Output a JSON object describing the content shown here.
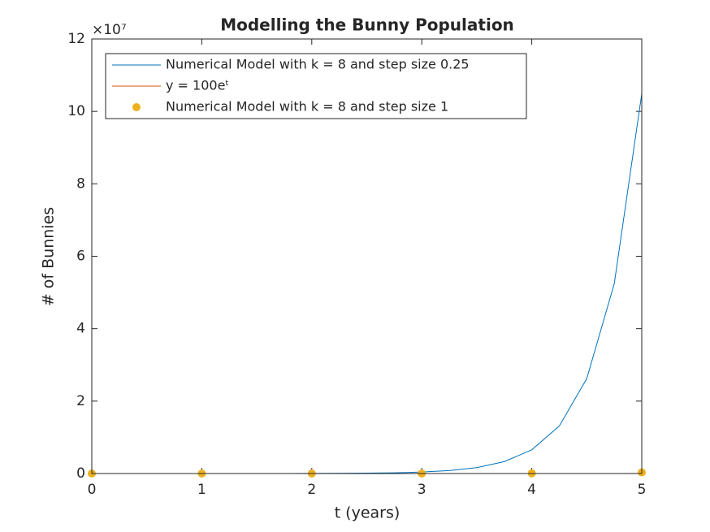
{
  "chart_data": {
    "type": "line",
    "title": "Modelling the Bunny Population",
    "xlabel": "t (years)",
    "ylabel": "# of Bunnies",
    "y_multiplier": "×10⁷",
    "xlim": [
      0,
      5
    ],
    "xticks": [
      0,
      1,
      2,
      3,
      4,
      5
    ],
    "ylim": [
      0,
      120000000
    ],
    "yticks": [
      0,
      {
        "value": 20000000,
        "label": "2"
      },
      {
        "value": 40000000,
        "label": "4"
      },
      {
        "value": 60000000,
        "label": "6"
      },
      {
        "value": 80000000,
        "label": "8"
      },
      {
        "value": 100000000,
        "label": "10"
      },
      {
        "value": 120000000,
        "label": "12"
      }
    ],
    "legend": "top-left",
    "series": [
      {
        "name": "Numerical Model with k = 8 and step size 0.25",
        "color": "#0072BD",
        "style": "line",
        "x": [
          0,
          0.25,
          0.5,
          0.75,
          1,
          1.25,
          1.5,
          1.75,
          2,
          2.25,
          2.5,
          2.75,
          3,
          3.25,
          3.5,
          3.75,
          4,
          4.25,
          4.5,
          4.75,
          5
        ],
        "values": [
          100,
          200,
          400,
          800,
          1600,
          3200,
          6400,
          12800,
          25600,
          51200,
          102400,
          204800,
          409600,
          819200,
          1638400,
          3276800,
          6553600,
          13107200,
          26214400,
          52428800,
          104857600
        ]
      },
      {
        "name": "y = 100eᵗ",
        "color": "#D95319",
        "style": "line",
        "x": [
          0,
          0.5,
          1,
          1.5,
          2,
          2.5,
          3,
          3.5,
          4,
          4.5,
          5
        ],
        "values": [
          100,
          165,
          272,
          448,
          739,
          1218,
          2009,
          3312,
          5460,
          9002,
          14841
        ]
      },
      {
        "name": "Numerical Model with k = 8 and step size 1",
        "color": "#EDB120",
        "style": "marker",
        "x": [
          0,
          1,
          2,
          3,
          4,
          5
        ],
        "values": [
          100,
          500,
          2500,
          12500,
          62500,
          312500
        ]
      }
    ]
  }
}
